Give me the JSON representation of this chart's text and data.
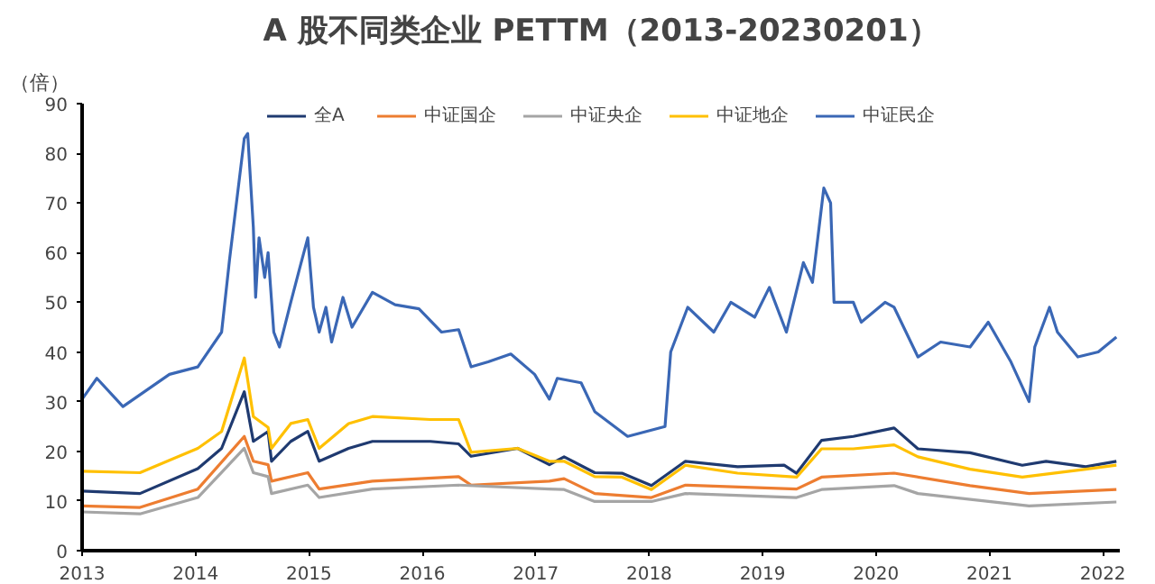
{
  "chart_data": {
    "type": "line",
    "title": "A 股不同类企业 PETTM（2013-20230201）",
    "ylabel": "（倍）",
    "legend": "top",
    "grid": false,
    "marker": "none",
    "line_style": "solid",
    "xlim": [
      2013,
      2022.15
    ],
    "xticks": [
      2013,
      2014,
      2015,
      2016,
      2017,
      2018,
      2019,
      2020,
      2021,
      2022
    ],
    "ylim": [
      0,
      90
    ],
    "yticks": [
      0,
      10,
      20,
      30,
      40,
      50,
      60,
      70,
      80,
      90
    ],
    "series": [
      {
        "name": "全A",
        "color": "#1f3a70",
        "x": [
          2013,
          2013.51,
          2014.02,
          2014.23,
          2014.43,
          2014.51,
          2014.64,
          2014.67,
          2014.84,
          2014.99,
          2015.09,
          2015.35,
          2015.56,
          2016.07,
          2016.32,
          2016.43,
          2016.84,
          2017.12,
          2017.25,
          2017.52,
          2017.76,
          2018.02,
          2018.32,
          2018.78,
          2019.19,
          2019.3,
          2019.52,
          2019.8,
          2020.16,
          2020.37,
          2020.83,
          2021.29,
          2021.5,
          2021.85,
          2022.12
        ],
        "values": [
          12,
          11.5,
          16.5,
          20.6,
          32,
          22,
          24,
          18,
          22,
          24,
          18,
          20.6,
          22,
          22,
          21.5,
          19,
          20.6,
          17.3,
          18.9,
          15.7,
          15.6,
          13.1,
          18,
          16.9,
          17.2,
          15.6,
          22.2,
          23,
          24.7,
          20.5,
          19.7,
          17.2,
          18,
          16.9,
          18
        ]
      },
      {
        "name": "中证国企",
        "color": "#ed7d31",
        "x": [
          2013,
          2013.51,
          2014.02,
          2014.43,
          2014.51,
          2014.64,
          2014.67,
          2014.99,
          2015.09,
          2015.56,
          2016.32,
          2016.43,
          2017.12,
          2017.25,
          2017.52,
          2018.02,
          2018.32,
          2019.3,
          2019.52,
          2020.16,
          2020.83,
          2021.35,
          2022.12
        ],
        "values": [
          9,
          8.7,
          12.4,
          23,
          18,
          17.3,
          14,
          15.7,
          12.4,
          14,
          14.9,
          13.2,
          14,
          14.5,
          11.5,
          10.7,
          13.2,
          12.4,
          14.8,
          15.6,
          13.1,
          11.5,
          12.3
        ]
      },
      {
        "name": "中证央企",
        "color": "#a5a5a5",
        "x": [
          2013,
          2013.51,
          2014.02,
          2014.43,
          2014.51,
          2014.64,
          2014.67,
          2014.99,
          2015.09,
          2015.56,
          2016.32,
          2017.12,
          2017.25,
          2017.52,
          2018.02,
          2018.32,
          2019.3,
          2019.52,
          2020.16,
          2020.37,
          2021.35,
          2022.12
        ],
        "values": [
          7.8,
          7.4,
          10.7,
          20.6,
          15.7,
          14.9,
          11.5,
          13.2,
          10.7,
          12.4,
          13.2,
          12.4,
          12.3,
          9.9,
          9.9,
          11.5,
          10.7,
          12.3,
          13.1,
          11.5,
          9,
          9.8
        ]
      },
      {
        "name": "中证地企",
        "color": "#ffc000",
        "x": [
          2013,
          2013.51,
          2014.02,
          2014.23,
          2014.43,
          2014.51,
          2014.64,
          2014.67,
          2014.84,
          2014.99,
          2015.09,
          2015.35,
          2015.56,
          2016.07,
          2016.32,
          2016.43,
          2016.84,
          2017.12,
          2017.25,
          2017.52,
          2017.76,
          2018.02,
          2018.32,
          2018.78,
          2019.3,
          2019.52,
          2019.8,
          2020.16,
          2020.37,
          2020.83,
          2021.29,
          2021.85,
          2022.12
        ],
        "values": [
          16,
          15.7,
          20.6,
          24,
          38.8,
          27,
          24.8,
          20.6,
          25.6,
          26.4,
          20.6,
          25.6,
          27,
          26.4,
          26.4,
          19.8,
          20.6,
          18,
          18,
          14.9,
          14.8,
          12.3,
          17.2,
          15.6,
          14.8,
          20.5,
          20.5,
          21.3,
          18.9,
          16.4,
          14.8,
          16.4,
          17.2
        ]
      },
      {
        "name": "中证民企",
        "color": "#3a67b5",
        "x": [
          2013,
          2013.13,
          2013.36,
          2013.77,
          2014.02,
          2014.23,
          2014.3,
          2014.43,
          2014.46,
          2014.51,
          2014.53,
          2014.56,
          2014.61,
          2014.64,
          2014.69,
          2014.74,
          2014.84,
          2014.92,
          2014.99,
          2015.04,
          2015.09,
          2015.15,
          2015.2,
          2015.3,
          2015.38,
          2015.56,
          2015.76,
          2015.97,
          2016.17,
          2016.32,
          2016.43,
          2016.58,
          2016.78,
          2016.99,
          2017.12,
          2017.19,
          2017.4,
          2017.52,
          2017.81,
          2018.14,
          2018.19,
          2018.34,
          2018.57,
          2018.72,
          2018.93,
          2019.06,
          2019.21,
          2019.36,
          2019.44,
          2019.54,
          2019.6,
          2019.63,
          2019.8,
          2019.87,
          2020.08,
          2020.16,
          2020.37,
          2020.57,
          2020.83,
          2020.99,
          2021.19,
          2021.35,
          2021.4,
          2021.53,
          2021.6,
          2021.78,
          2021.96,
          2022.12
        ],
        "values": [
          30.5,
          34.7,
          29,
          35.5,
          37,
          44,
          58.6,
          83,
          84,
          65,
          51,
          63,
          55,
          60,
          44,
          41,
          50,
          57,
          63,
          49,
          44,
          49,
          42,
          51,
          45,
          52,
          49.5,
          48.7,
          44,
          44.5,
          37,
          38,
          39.6,
          35.5,
          30.5,
          34.7,
          33.8,
          28,
          23,
          25,
          40,
          49,
          44,
          50,
          47,
          53,
          44,
          58,
          54,
          73,
          70,
          50,
          50,
          46,
          50,
          49,
          39,
          42,
          41,
          46,
          38,
          30,
          41,
          49,
          44,
          39,
          40,
          43
        ]
      }
    ]
  }
}
